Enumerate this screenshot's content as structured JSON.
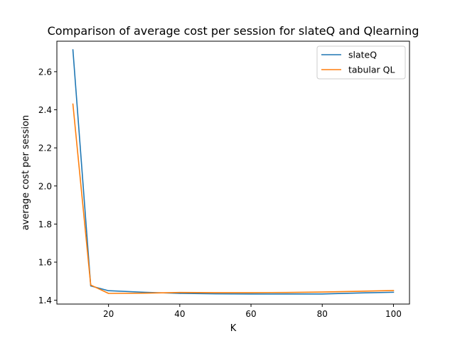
{
  "chart_data": {
    "type": "line",
    "title": "Comparison of average cost per session for slateQ and Qlearning",
    "xlabel": "K",
    "ylabel": "average cost per session",
    "xlim": [
      5.5,
      104.5
    ],
    "ylim": [
      1.38,
      2.76
    ],
    "xticks": [
      20,
      40,
      60,
      80,
      100
    ],
    "yticks": [
      1.4,
      1.6,
      1.8,
      2.0,
      2.2,
      2.4,
      2.6
    ],
    "ytick_labels": [
      "1.4",
      "1.6",
      "1.8",
      "2.0",
      "2.2",
      "2.4",
      "2.6"
    ],
    "grid": false,
    "legend_position": "top-right",
    "x": [
      10,
      15,
      20,
      30,
      40,
      50,
      60,
      70,
      80,
      90,
      100
    ],
    "series": [
      {
        "name": "slateQ",
        "color": "#1f77b4",
        "values": [
          2.715,
          1.475,
          1.45,
          1.442,
          1.436,
          1.434,
          1.433,
          1.433,
          1.433,
          1.438,
          1.442
        ]
      },
      {
        "name": "tabular QL",
        "color": "#ff7f0e",
        "values": [
          2.43,
          1.48,
          1.436,
          1.437,
          1.441,
          1.44,
          1.44,
          1.441,
          1.443,
          1.447,
          1.451
        ]
      }
    ]
  }
}
